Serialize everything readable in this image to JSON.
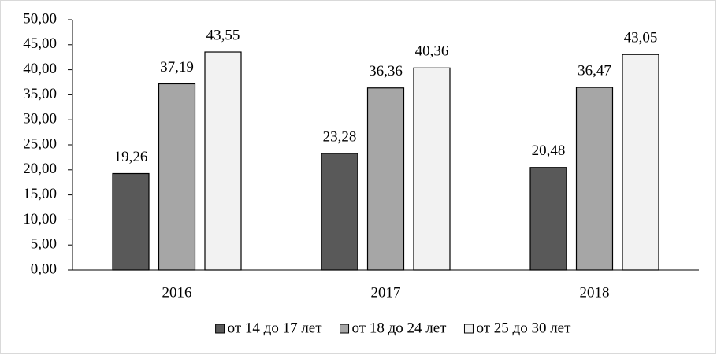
{
  "chart_data": {
    "type": "bar",
    "categories": [
      "2016",
      "2017",
      "2018"
    ],
    "series": [
      {
        "name": "от 14 до 17 лет",
        "color": "#595959",
        "values": [
          19.26,
          23.28,
          20.48
        ],
        "value_labels": [
          "19,26",
          "23,28",
          "20,48"
        ]
      },
      {
        "name": "от 18 до 24 лет",
        "color": "#a6a6a6",
        "values": [
          37.19,
          36.36,
          36.47
        ],
        "value_labels": [
          "37,19",
          "36,36",
          "36,47"
        ]
      },
      {
        "name": "от 25 до 30 лет",
        "color": "#f2f2f2",
        "values": [
          43.55,
          40.36,
          43.05
        ],
        "value_labels": [
          "43,55",
          "40,36",
          "43,05"
        ]
      }
    ],
    "ylim": [
      0,
      50
    ],
    "yticks": [
      {
        "value": 0,
        "label": "0,00"
      },
      {
        "value": 5,
        "label": "5,00"
      },
      {
        "value": 10,
        "label": "10,00"
      },
      {
        "value": 15,
        "label": "15,00"
      },
      {
        "value": 20,
        "label": "20,00"
      },
      {
        "value": 25,
        "label": "25,00"
      },
      {
        "value": 30,
        "label": "30,00"
      },
      {
        "value": 35,
        "label": "35,00"
      },
      {
        "value": 40,
        "label": "40,00"
      },
      {
        "value": 45,
        "label": "45,00"
      },
      {
        "value": 50,
        "label": "50,00"
      }
    ],
    "grid": false,
    "legend": "bottom"
  }
}
